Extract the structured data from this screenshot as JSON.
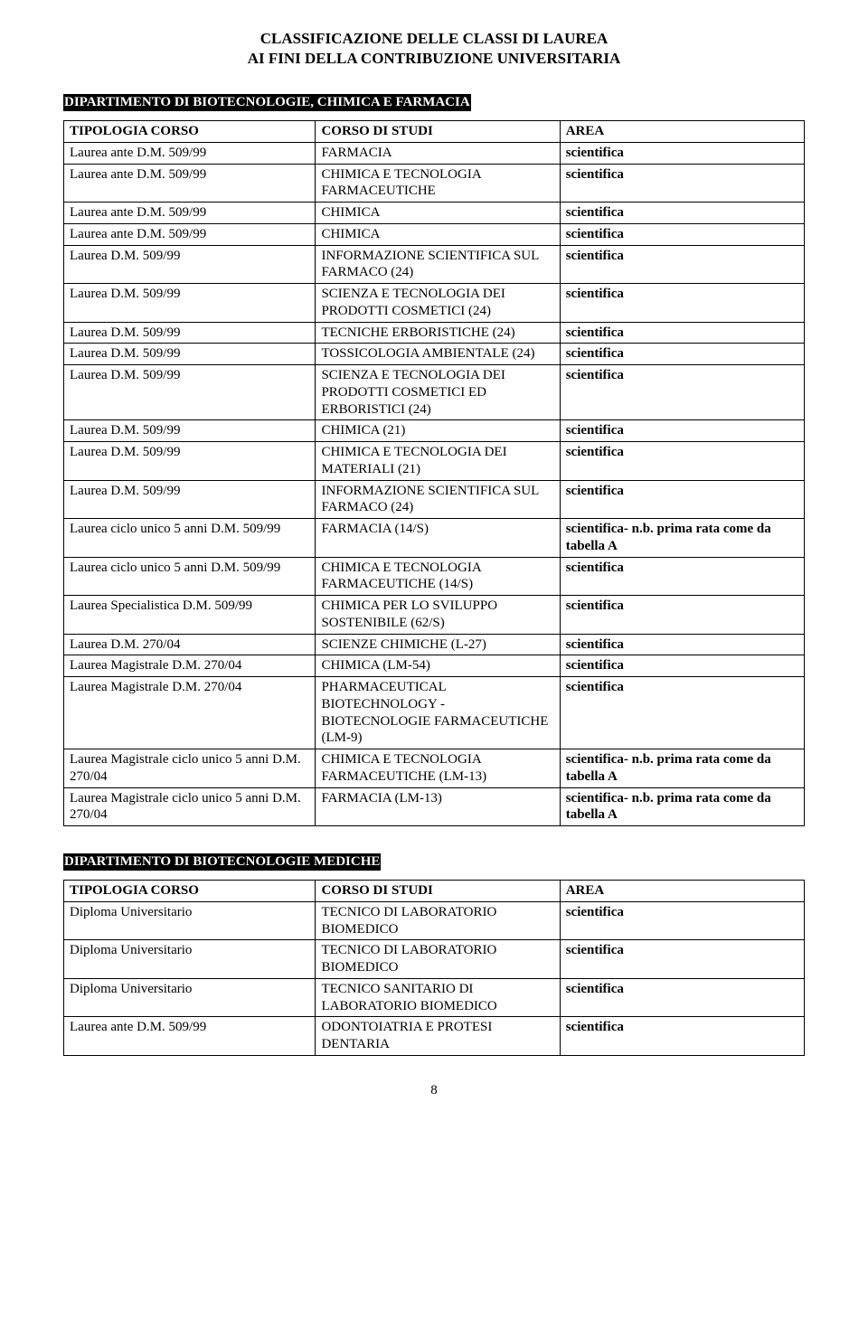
{
  "page": {
    "title_line1": "CLASSIFICAZIONE DELLE CLASSI DI LAUREA",
    "title_line2": "AI FINI DELLA CONTRIBUZIONE UNIVERSITARIA",
    "page_number": "8"
  },
  "colors": {
    "dept_bg": "#000000",
    "dept_fg": "#ffffff",
    "border": "#000000",
    "text": "#000000"
  },
  "table_header": {
    "col1": "TIPOLOGIA CORSO",
    "col2": "CORSO DI STUDI",
    "col3": "AREA"
  },
  "section1": {
    "dept": "DIPARTIMENTO DI BIOTECNOLOGIE, CHIMICA E FARMACIA",
    "rows": [
      {
        "tip": "Laurea ante D.M. 509/99",
        "corso": "FARMACIA",
        "area": "scientifica"
      },
      {
        "tip": "Laurea ante D.M. 509/99",
        "corso": "CHIMICA E TECNOLOGIA FARMACEUTICHE",
        "area": "scientifica"
      },
      {
        "tip": "Laurea ante D.M. 509/99",
        "corso": "CHIMICA",
        "area": "scientifica"
      },
      {
        "tip": "Laurea ante D.M. 509/99",
        "corso": "CHIMICA",
        "area": "scientifica"
      },
      {
        "tip": "Laurea D.M. 509/99",
        "corso": "INFORMAZIONE SCIENTIFICA SUL FARMACO (24)",
        "area": "scientifica"
      },
      {
        "tip": "Laurea D.M. 509/99",
        "corso": "SCIENZA E TECNOLOGIA DEI PRODOTTI COSMETICI (24)",
        "area": "scientifica"
      },
      {
        "tip": "Laurea D.M. 509/99",
        "corso": "TECNICHE ERBORISTICHE (24)",
        "area": "scientifica"
      },
      {
        "tip": "Laurea D.M. 509/99",
        "corso": "TOSSICOLOGIA AMBIENTALE (24)",
        "area": "scientifica"
      },
      {
        "tip": "Laurea D.M. 509/99",
        "corso": "SCIENZA E TECNOLOGIA DEI PRODOTTI COSMETICI ED ERBORISTICI (24)",
        "area": "scientifica"
      },
      {
        "tip": "Laurea D.M. 509/99",
        "corso": "CHIMICA (21)",
        "area": "scientifica"
      },
      {
        "tip": "Laurea D.M. 509/99",
        "corso": "CHIMICA E TECNOLOGIA DEI MATERIALI (21)",
        "area": "scientifica"
      },
      {
        "tip": "Laurea D.M. 509/99",
        "corso": "INFORMAZIONE SCIENTIFICA SUL FARMACO (24)",
        "area": "scientifica"
      },
      {
        "tip": "Laurea ciclo unico 5 anni D.M. 509/99",
        "corso": "FARMACIA (14/S)",
        "area": "scientifica- n.b. prima rata come da tabella A"
      },
      {
        "tip": "Laurea ciclo unico 5 anni D.M. 509/99",
        "corso": "CHIMICA E TECNOLOGIA FARMACEUTICHE (14/S)",
        "area": "scientifica"
      },
      {
        "tip": "Laurea Specialistica D.M. 509/99",
        "corso": "CHIMICA PER LO SVILUPPO SOSTENIBILE (62/S)",
        "area": "scientifica"
      },
      {
        "tip": "Laurea D.M. 270/04",
        "corso": "SCIENZE CHIMICHE (L-27)",
        "area": "scientifica"
      },
      {
        "tip": "Laurea Magistrale D.M. 270/04",
        "corso": "CHIMICA (LM-54)",
        "area": "scientifica"
      },
      {
        "tip": "Laurea Magistrale D.M. 270/04",
        "corso": "PHARMACEUTICAL BIOTECHNOLOGY - BIOTECNOLOGIE FARMACEUTICHE (LM-9)",
        "area": "scientifica"
      },
      {
        "tip": "Laurea Magistrale ciclo unico 5 anni D.M. 270/04",
        "corso": "CHIMICA E TECNOLOGIA FARMACEUTICHE (LM-13)",
        "area": "scientifica- n.b. prima rata come da tabella A"
      },
      {
        "tip": "Laurea Magistrale ciclo unico 5 anni D.M. 270/04",
        "corso": "FARMACIA (LM-13)",
        "area": "scientifica- n.b. prima rata come da tabella A"
      }
    ]
  },
  "section2": {
    "dept": "DIPARTIMENTO DI BIOTECNOLOGIE MEDICHE",
    "rows": [
      {
        "tip": "Diploma Universitario",
        "corso": "TECNICO DI LABORATORIO BIOMEDICO",
        "area": "scientifica"
      },
      {
        "tip": "Diploma Universitario",
        "corso": "TECNICO DI LABORATORIO BIOMEDICO",
        "area": "scientifica"
      },
      {
        "tip": "Diploma Universitario",
        "corso": "TECNICO SANITARIO DI LABORATORIO BIOMEDICO",
        "area": "scientifica"
      },
      {
        "tip": "Laurea ante D.M. 509/99",
        "corso": "ODONTOIATRIA E PROTESI DENTARIA",
        "area": "scientifica"
      }
    ]
  }
}
